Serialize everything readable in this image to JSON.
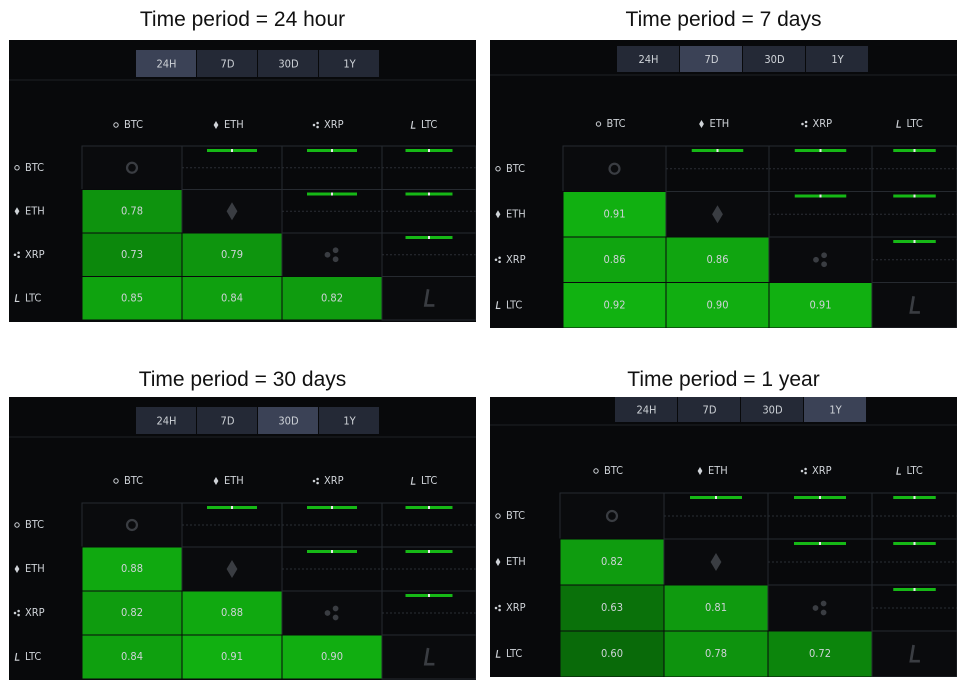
{
  "panels": [
    {
      "title": "Time period = 24 hour",
      "tabs": [
        "24H",
        "7D",
        "30D",
        "1Y"
      ],
      "active_tab": 0,
      "assets": [
        "BTC",
        "ETH",
        "XRP",
        "LTC"
      ],
      "values": [
        [
          0.78
        ],
        [
          0.73,
          0.79
        ],
        [
          0.85,
          0.84,
          0.82
        ]
      ],
      "value_labels": [
        [
          "0.78"
        ],
        [
          "0.73",
          "0.79"
        ],
        [
          "0.85",
          "0.84",
          "0.82"
        ]
      ]
    },
    {
      "title": "Time period = 7 days",
      "tabs": [
        "24H",
        "7D",
        "30D",
        "1Y"
      ],
      "active_tab": 1,
      "assets": [
        "BTC",
        "ETH",
        "XRP",
        "LTC"
      ],
      "values": [
        [
          0.91
        ],
        [
          0.86,
          0.86
        ],
        [
          0.92,
          0.9,
          0.91
        ]
      ],
      "value_labels": [
        [
          "0.91"
        ],
        [
          "0.86",
          "0.86"
        ],
        [
          "0.92",
          "0.90",
          "0.91"
        ]
      ]
    },
    {
      "title": "Time period = 30 days",
      "tabs": [
        "24H",
        "7D",
        "30D",
        "1Y"
      ],
      "active_tab": 2,
      "assets": [
        "BTC",
        "ETH",
        "XRP",
        "LTC"
      ],
      "values": [
        [
          0.88
        ],
        [
          0.82,
          0.88
        ],
        [
          0.84,
          0.91,
          0.9
        ]
      ],
      "value_labels": [
        [
          "0.88"
        ],
        [
          "0.82",
          "0.88"
        ],
        [
          "0.84",
          "0.91",
          "0.90"
        ]
      ]
    },
    {
      "title": "Time period = 1 year",
      "tabs": [
        "24H",
        "7D",
        "30D",
        "1Y"
      ],
      "active_tab": 3,
      "assets": [
        "BTC",
        "ETH",
        "XRP",
        "LTC"
      ],
      "values": [
        [
          0.82
        ],
        [
          0.63,
          0.81
        ],
        [
          0.6,
          0.78,
          0.72
        ]
      ],
      "value_labels": [
        [
          "0.82"
        ],
        [
          "0.63",
          "0.81"
        ],
        [
          "0.60",
          "0.78",
          "0.72"
        ]
      ]
    }
  ]
}
